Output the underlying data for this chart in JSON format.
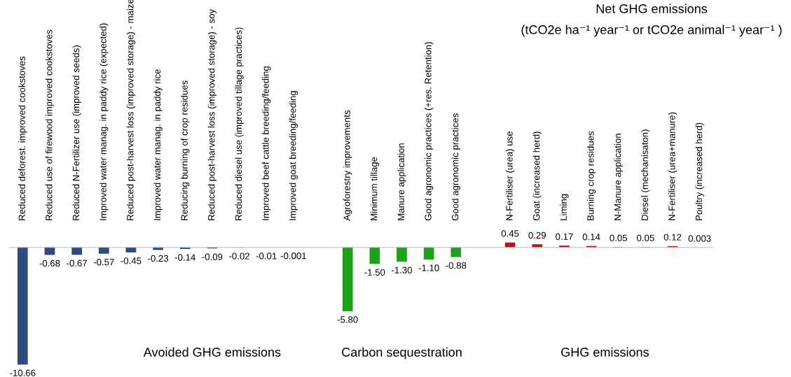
{
  "chart_data": {
    "type": "bar",
    "title": "Net GHG emissions",
    "subtitle": "(tCO2e ha⁻¹ year⁻¹ or tCO2e animal⁻¹ year⁻¹ )",
    "categories": [
      "Reduced deforest. improved cookstoves",
      "Reduced use of firewood improved cookstoves",
      "Reduced N-Fertilizer use (improved seeds)",
      "Improved water manag. in paddy rice (expected)",
      "Reduced post-harvest loss (improved storage) - maize",
      "Improved water manag. in paddy rice",
      "Reducing burning of crop residues",
      "Reduced post-harvest loss (improved storage) - soy",
      "Reduced diesel use (improved tillage practices)",
      "Improved beef cattle breeding/feeding",
      "Improved goat breeding/feeding",
      null,
      "Agroforestry improvements",
      "Minimum tillage",
      "Manure application",
      "Good agronomic practices (+res. Retention)",
      "Good agronomic practices",
      null,
      "N-Fertiliser (urea) use",
      "Goat (increased herd)",
      "Liming",
      "Burning crop residues",
      "N-Manure application",
      "Diesel (mechanisaton)",
      "N-Fertiliser (urea+manure)",
      "Poultry (increased herd)"
    ],
    "values": [
      -10.66,
      -0.68,
      -0.67,
      -0.57,
      -0.45,
      -0.23,
      -0.14,
      -0.09,
      -0.02,
      -0.01,
      -0.001,
      null,
      -5.8,
      -1.5,
      -1.3,
      -1.1,
      -0.88,
      null,
      0.45,
      0.29,
      0.17,
      0.14,
      0.05,
      0.05,
      0.12,
      0.003
    ],
    "value_labels": [
      "-10.66",
      "-0.68",
      "-0.67",
      "-0.57",
      "-0.45",
      "-0.23",
      "-0.14",
      "-0.09",
      "-0.02",
      "-0.01",
      "-0.001",
      null,
      "-5.80",
      "-1.50",
      "-1.30",
      "-1.10",
      "-0.88",
      null,
      "0.45",
      "0.29",
      "0.17",
      "0.14",
      "0.05",
      "0.05",
      "0.12",
      "0.003"
    ],
    "colors": [
      "#2d4b7e",
      "#2d4b7e",
      "#2d4b7e",
      "#2d4b7e",
      "#2d4b7e",
      "#2d4b7e",
      "#2d4b7e",
      "#2d4b7e",
      "#2d4b7e",
      "#2d4b7e",
      "#2d4b7e",
      "#2d4b7e",
      "#1fa01a",
      "#1fa01a",
      "#1fa01a",
      "#1fa01a",
      "#1fa01a",
      "#1fa01a",
      "#b3191b",
      "#b3191b",
      "#b3191b",
      "#b3191b",
      "#b3191b",
      "#b3191b",
      "#b3191b",
      "#b3191b"
    ],
    "annotations": [
      "Avoided GHG emissions",
      "Carbon sequestration",
      "GHG emissions"
    ],
    "grid": false,
    "legend": false
  }
}
